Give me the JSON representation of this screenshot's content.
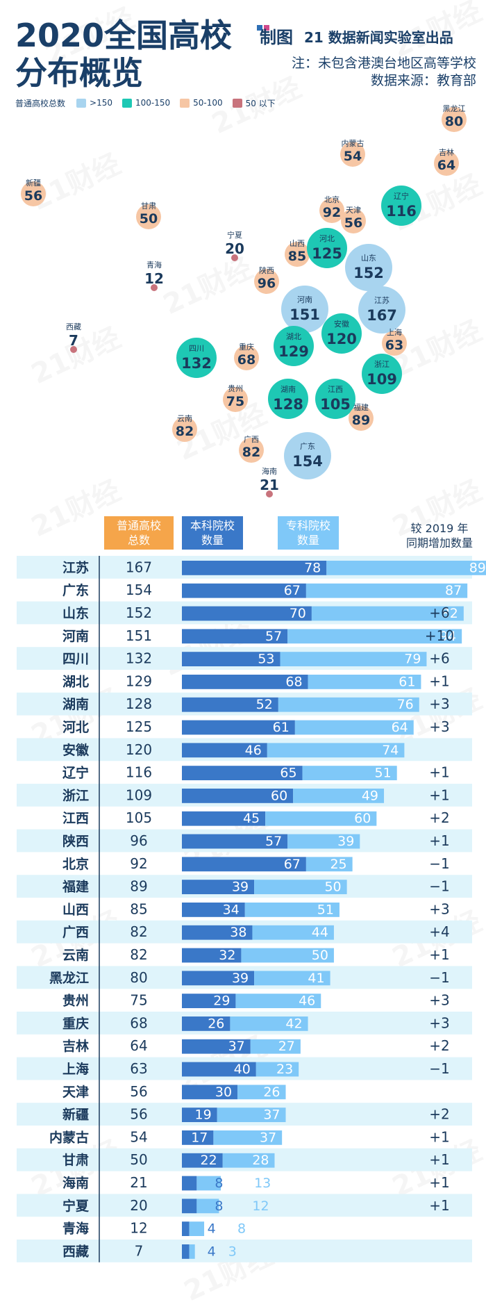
{
  "header": {
    "title_line1": "2020全国高校",
    "title_line2": "分布概览",
    "logo_text": "制图",
    "brand": "21 数据新闻实验室出品",
    "note": "注：未包含港澳台地区高等学校",
    "source": "数据来源：教育部",
    "watermark": "21财经"
  },
  "legend": {
    "title": "普通高校总数",
    "items": [
      {
        "label": ">150",
        "color": "#a8d4ef"
      },
      {
        "label": "100-150",
        "color": "#1ec8b4"
      },
      {
        "label": "50-100",
        "color": "#f6c6a4"
      },
      {
        "label": "50 以下",
        "color": "#c8737c"
      }
    ]
  },
  "table_header": {
    "total": "普通高校\n总数",
    "benke": "本科院校\n数量",
    "zhuanke": "专科院校\n数量",
    "change": "较 2019 年\n同期增加数量"
  },
  "chart_data": [
    {
      "type": "bubble-map",
      "provinces": [
        {
          "name": "黑龙江",
          "total": 80
        },
        {
          "name": "内蒙古",
          "total": 54
        },
        {
          "name": "吉林",
          "total": 64
        },
        {
          "name": "新疆",
          "total": 56
        },
        {
          "name": "甘肃",
          "total": 50
        },
        {
          "name": "北京",
          "total": 92
        },
        {
          "name": "天津",
          "total": 56
        },
        {
          "name": "辽宁",
          "total": 116
        },
        {
          "name": "宁夏",
          "total": 20
        },
        {
          "name": "山西",
          "total": 85
        },
        {
          "name": "河北",
          "total": 125
        },
        {
          "name": "青海",
          "total": 12
        },
        {
          "name": "陕西",
          "total": 96
        },
        {
          "name": "山东",
          "total": 152
        },
        {
          "name": "河南",
          "total": 151
        },
        {
          "name": "西藏",
          "total": 7
        },
        {
          "name": "江苏",
          "total": 167
        },
        {
          "name": "安徽",
          "total": 120
        },
        {
          "name": "上海",
          "total": 63
        },
        {
          "name": "四川",
          "total": 132
        },
        {
          "name": "重庆",
          "total": 68
        },
        {
          "name": "湖北",
          "total": 129
        },
        {
          "name": "浙江",
          "total": 109
        },
        {
          "name": "贵州",
          "total": 75
        },
        {
          "name": "湖南",
          "total": 128
        },
        {
          "name": "江西",
          "total": 105
        },
        {
          "name": "福建",
          "total": 89
        },
        {
          "name": "云南",
          "total": 82
        },
        {
          "name": "广西",
          "total": 82
        },
        {
          "name": "广东",
          "total": 154
        },
        {
          "name": "海南",
          "total": 21
        }
      ]
    },
    {
      "type": "bar",
      "stacked": true,
      "series_names": [
        "本科院校数量",
        "专科院校数量"
      ],
      "colors": {
        "benke": "#3a78c8",
        "zhuanke": "#7fc8f8"
      },
      "rows": [
        {
          "province": "江苏",
          "total": 167,
          "benke": 78,
          "zhuanke": 89,
          "change": ""
        },
        {
          "province": "广东",
          "total": 154,
          "benke": 67,
          "zhuanke": 87,
          "change": ""
        },
        {
          "province": "山东",
          "total": 152,
          "benke": 70,
          "zhuanke": 82,
          "change": "+6"
        },
        {
          "province": "河南",
          "total": 151,
          "benke": 57,
          "zhuanke": 94,
          "change": "+10"
        },
        {
          "province": "四川",
          "total": 132,
          "benke": 53,
          "zhuanke": 79,
          "change": "+6"
        },
        {
          "province": "湖北",
          "total": 129,
          "benke": 68,
          "zhuanke": 61,
          "change": "+1"
        },
        {
          "province": "湖南",
          "total": 128,
          "benke": 52,
          "zhuanke": 76,
          "change": "+3"
        },
        {
          "province": "河北",
          "total": 125,
          "benke": 61,
          "zhuanke": 64,
          "change": "+3"
        },
        {
          "province": "安徽",
          "total": 120,
          "benke": 46,
          "zhuanke": 74,
          "change": ""
        },
        {
          "province": "辽宁",
          "total": 116,
          "benke": 65,
          "zhuanke": 51,
          "change": "+1"
        },
        {
          "province": "浙江",
          "total": 109,
          "benke": 60,
          "zhuanke": 49,
          "change": "+1"
        },
        {
          "province": "江西",
          "total": 105,
          "benke": 45,
          "zhuanke": 60,
          "change": "+2"
        },
        {
          "province": "陕西",
          "total": 96,
          "benke": 57,
          "zhuanke": 39,
          "change": "+1"
        },
        {
          "province": "北京",
          "total": 92,
          "benke": 67,
          "zhuanke": 25,
          "change": "−1"
        },
        {
          "province": "福建",
          "total": 89,
          "benke": 39,
          "zhuanke": 50,
          "change": "−1"
        },
        {
          "province": "山西",
          "total": 85,
          "benke": 34,
          "zhuanke": 51,
          "change": "+3"
        },
        {
          "province": "广西",
          "total": 82,
          "benke": 38,
          "zhuanke": 44,
          "change": "+4"
        },
        {
          "province": "云南",
          "total": 82,
          "benke": 32,
          "zhuanke": 50,
          "change": "+1"
        },
        {
          "province": "黑龙江",
          "total": 80,
          "benke": 39,
          "zhuanke": 41,
          "change": "−1"
        },
        {
          "province": "贵州",
          "total": 75,
          "benke": 29,
          "zhuanke": 46,
          "change": "+3"
        },
        {
          "province": "重庆",
          "total": 68,
          "benke": 26,
          "zhuanke": 42,
          "change": "+3"
        },
        {
          "province": "吉林",
          "total": 64,
          "benke": 37,
          "zhuanke": 27,
          "change": "+2"
        },
        {
          "province": "上海",
          "total": 63,
          "benke": 40,
          "zhuanke": 23,
          "change": "−1"
        },
        {
          "province": "天津",
          "total": 56,
          "benke": 30,
          "zhuanke": 26,
          "change": ""
        },
        {
          "province": "新疆",
          "total": 56,
          "benke": 19,
          "zhuanke": 37,
          "change": "+2"
        },
        {
          "province": "内蒙古",
          "total": 54,
          "benke": 17,
          "zhuanke": 37,
          "change": "+1"
        },
        {
          "province": "甘肃",
          "total": 50,
          "benke": 22,
          "zhuanke": 28,
          "change": "+1"
        },
        {
          "province": "海南",
          "total": 21,
          "benke": 8,
          "zhuanke": 13,
          "change": "+1"
        },
        {
          "province": "宁夏",
          "total": 20,
          "benke": 8,
          "zhuanke": 12,
          "change": "+1"
        },
        {
          "province": "青海",
          "total": 12,
          "benke": 4,
          "zhuanke": 8,
          "change": ""
        },
        {
          "province": "西藏",
          "total": 7,
          "benke": 4,
          "zhuanke": 3,
          "change": ""
        }
      ]
    }
  ]
}
